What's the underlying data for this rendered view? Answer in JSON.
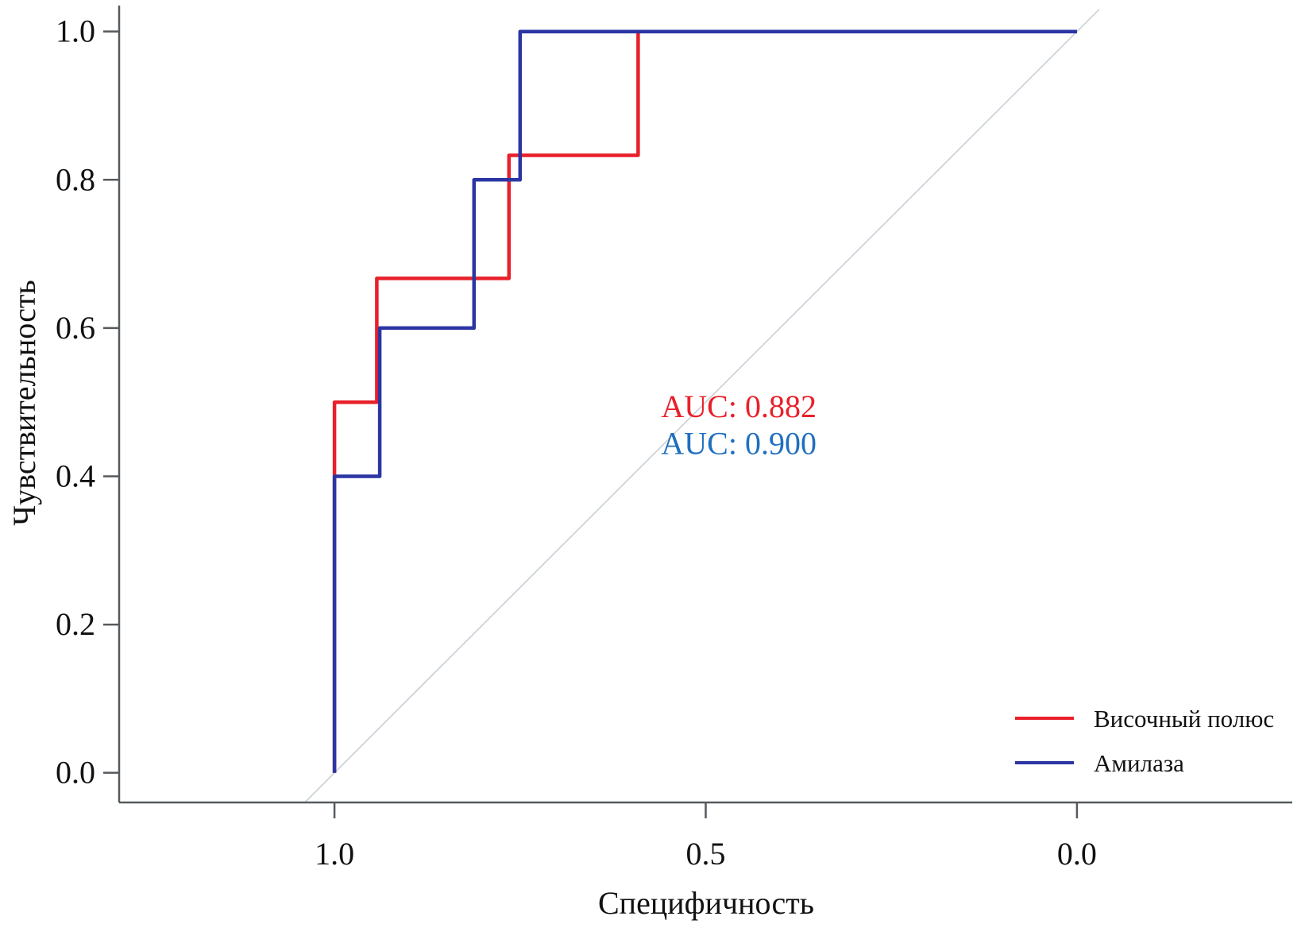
{
  "chart_data": {
    "type": "line",
    "title": "",
    "xlabel": "Специфичность",
    "ylabel": "Чувствительность",
    "x_reversed": true,
    "xlim": [
      1.29,
      -0.29
    ],
    "ylim": [
      -0.04,
      1.035
    ],
    "x_ticks": [
      1.0,
      0.5,
      0.0
    ],
    "x_tick_labels": [
      "1.0",
      "0.5",
      "0.0"
    ],
    "y_ticks": [
      0.0,
      0.2,
      0.4,
      0.6,
      0.8,
      1.0
    ],
    "y_tick_labels": [
      "0.0",
      "0.2",
      "0.4",
      "0.6",
      "0.8",
      "1.0"
    ],
    "grid": false,
    "legend_position": "bottom-right",
    "reference_line": {
      "name": "diagonal",
      "color": "#c9d0d6",
      "from": [
        1.04,
        -0.04
      ],
      "to": [
        -0.03,
        1.03
      ]
    },
    "series": [
      {
        "name": "Височный полюс",
        "color": "#e8202a",
        "step": true,
        "x": [
          1.0,
          1.0,
          0.943,
          0.943,
          0.765,
          0.765,
          0.591,
          0.591,
          0.0
        ],
        "y": [
          0.0,
          0.5,
          0.5,
          0.667,
          0.667,
          0.833,
          0.833,
          1.0,
          1.0
        ]
      },
      {
        "name": "Амилаза",
        "color": "#2b35a3",
        "step": true,
        "x": [
          1.0,
          1.0,
          0.939,
          0.939,
          0.812,
          0.812,
          0.75,
          0.75,
          0.0
        ],
        "y": [
          0.0,
          0.4,
          0.4,
          0.6,
          0.6,
          0.8,
          0.8,
          1.0,
          1.0
        ]
      }
    ],
    "annotations": [
      {
        "text": "AUC: 0.882",
        "color": "#e8202a",
        "x": 0.56,
        "y": 0.48
      },
      {
        "text": "AUC: 0.900",
        "color": "#1f6fbf",
        "x": 0.56,
        "y": 0.43
      }
    ]
  }
}
